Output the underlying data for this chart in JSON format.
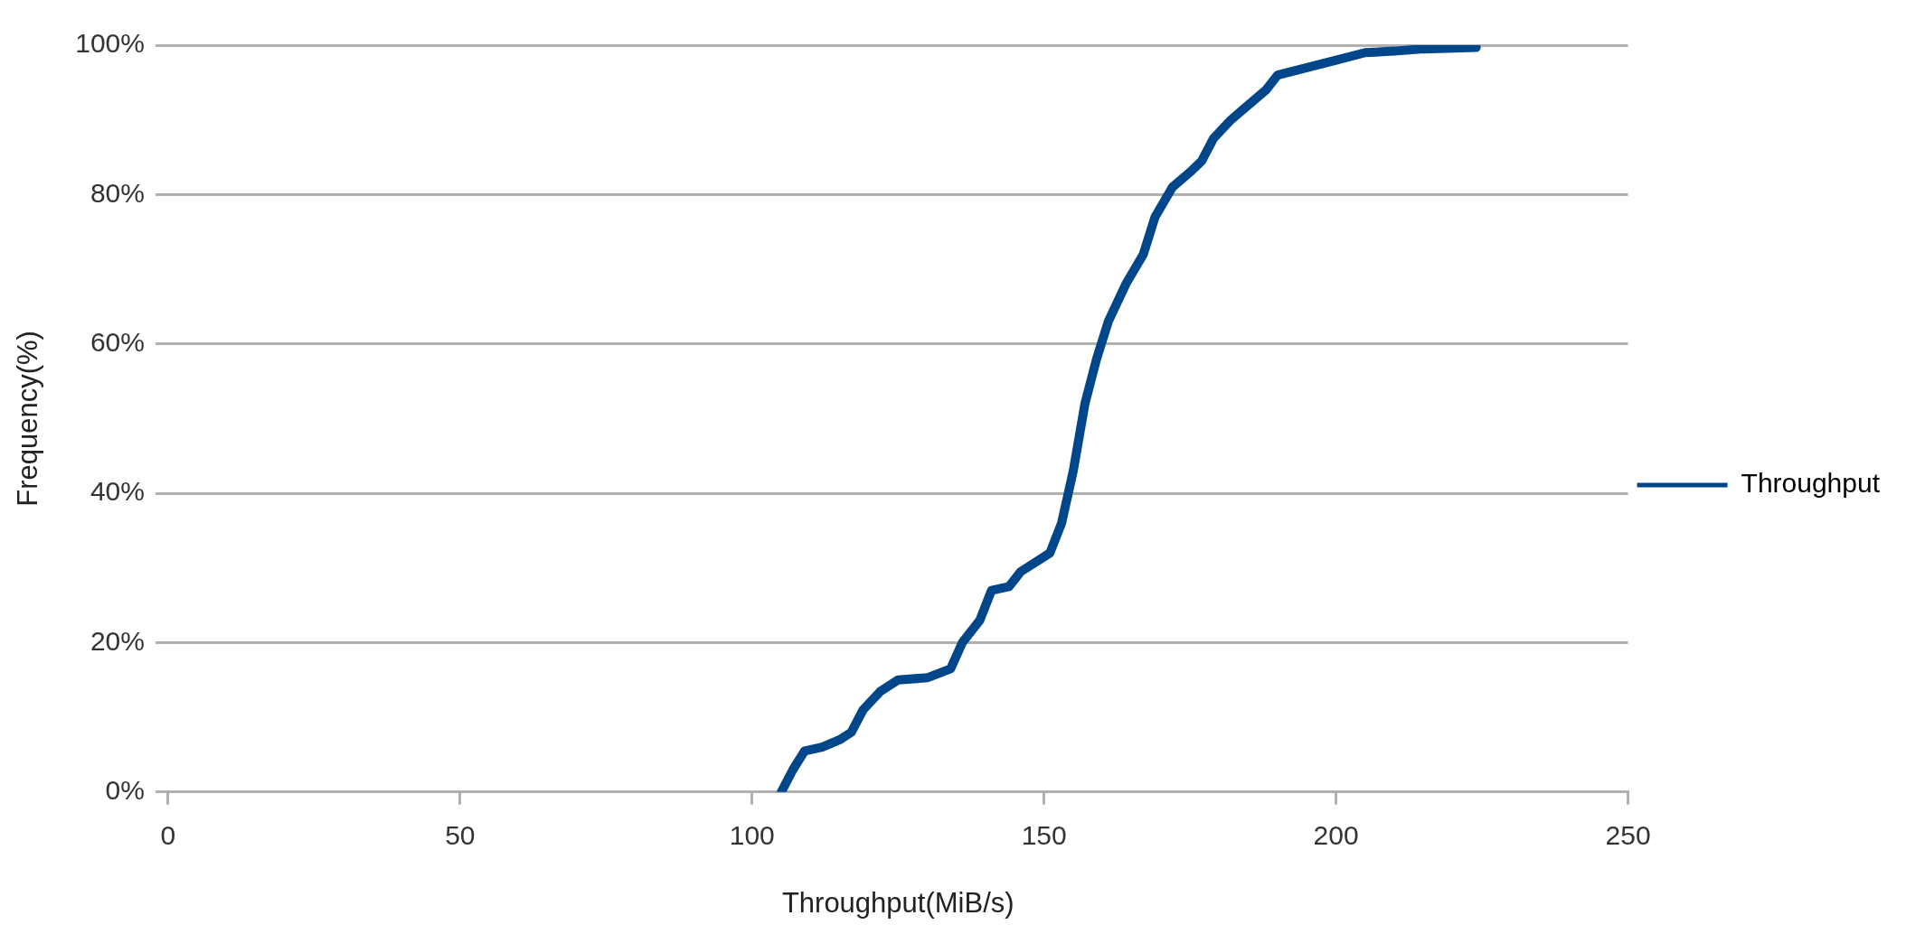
{
  "chart_data": {
    "type": "line",
    "xlabel": "Throughput(MiB/s)",
    "ylabel": "Frequency(%)",
    "xlim": [
      0,
      250
    ],
    "xticks": [
      0,
      50,
      100,
      150,
      200,
      250
    ],
    "ylim": [
      0,
      100
    ],
    "yticks": [
      {
        "value": 0,
        "label": "0%"
      },
      {
        "value": 20,
        "label": "20%"
      },
      {
        "value": 40,
        "label": "40%"
      },
      {
        "value": 60,
        "label": "60%"
      },
      {
        "value": 80,
        "label": "80%"
      },
      {
        "value": 100,
        "label": "100%"
      }
    ],
    "grid": "y",
    "legend": "right",
    "marker": "none",
    "line_style": "solid",
    "series": [
      {
        "name": "Throughput",
        "color": "#00468b",
        "x": [
          105,
          107,
          109,
          112,
          115,
          117,
          119,
          122,
          125,
          130,
          134,
          136,
          139,
          141,
          144,
          146,
          149,
          151,
          153,
          155,
          157,
          159,
          161,
          164,
          167,
          169,
          172,
          175,
          177,
          179,
          182,
          185,
          188,
          190,
          195,
          200,
          205,
          210,
          215,
          224
        ],
        "values": [
          0,
          3,
          5.5,
          6,
          7,
          8,
          11,
          13.5,
          15,
          15.3,
          16.5,
          20,
          23,
          27,
          27.5,
          29.5,
          31,
          32,
          36,
          43,
          52,
          58,
          63,
          68,
          72,
          77,
          81,
          83,
          84.5,
          87.5,
          90,
          92,
          94,
          96,
          97,
          98,
          99,
          99.2,
          99.5,
          99.7
        ]
      }
    ]
  }
}
